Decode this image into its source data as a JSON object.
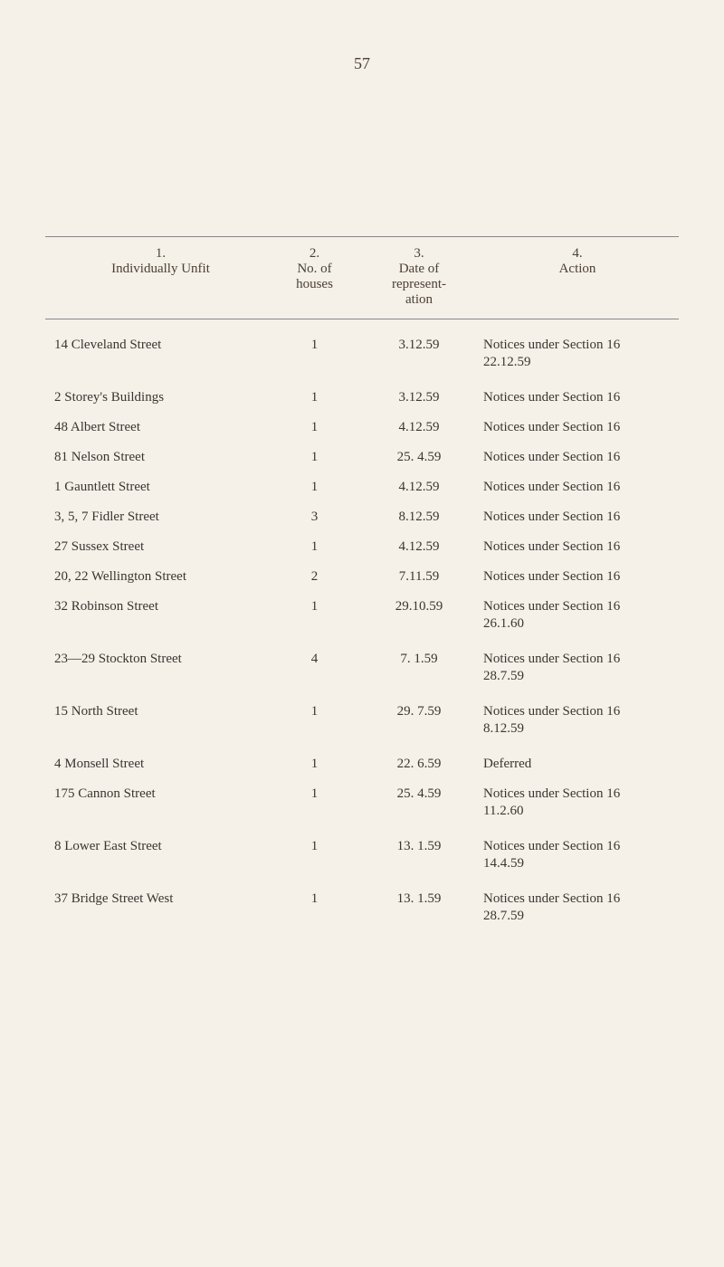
{
  "page_number": "57",
  "headers": {
    "col1_num": "1.",
    "col1_label": "Individually Unfit",
    "col2_num": "2.",
    "col2_label_1": "No. of",
    "col2_label_2": "houses",
    "col3_num": "3.",
    "col3_label_1": "Date of",
    "col3_label_2": "represent-",
    "col3_label_3": "ation",
    "col4_num": "4.",
    "col4_label": "Action"
  },
  "rows": [
    {
      "street": "14 Cleveland Street",
      "houses": "1",
      "date": "3.12.59",
      "action": "Notices under Section 16",
      "sub": "22.12.59"
    },
    {
      "street": "2 Storey's Buildings",
      "houses": "1",
      "date": "3.12.59",
      "action": "Notices under Section 16",
      "sub": ""
    },
    {
      "street": "48 Albert Street",
      "houses": "1",
      "date": "4.12.59",
      "action": "Notices under Section 16",
      "sub": ""
    },
    {
      "street": "81 Nelson Street",
      "houses": "1",
      "date": "25. 4.59",
      "action": "Notices under Section 16",
      "sub": ""
    },
    {
      "street": "1 Gauntlett Street",
      "houses": "1",
      "date": "4.12.59",
      "action": "Notices under Section 16",
      "sub": ""
    },
    {
      "street": "3, 5, 7 Fidler Street",
      "houses": "3",
      "date": "8.12.59",
      "action": "Notices under Section 16",
      "sub": ""
    },
    {
      "street": "27 Sussex Street",
      "houses": "1",
      "date": "4.12.59",
      "action": "Notices under Section 16",
      "sub": ""
    },
    {
      "street": "20, 22 Wellington Street",
      "houses": "2",
      "date": "7.11.59",
      "action": "Notices under Section 16",
      "sub": ""
    },
    {
      "street": "32 Robinson Street",
      "houses": "1",
      "date": "29.10.59",
      "action": "Notices under Section 16",
      "sub": "26.1.60"
    },
    {
      "street": "23—29 Stockton Street",
      "houses": "4",
      "date": "7. 1.59",
      "action": "Notices under Section 16",
      "sub": "28.7.59"
    },
    {
      "street": "15 North Street",
      "houses": "1",
      "date": "29. 7.59",
      "action": "Notices under Section 16",
      "sub": "8.12.59"
    },
    {
      "street": "4 Monsell Street",
      "houses": "1",
      "date": "22. 6.59",
      "action": "Deferred",
      "sub": ""
    },
    {
      "street": "175 Cannon Street",
      "houses": "1",
      "date": "25. 4.59",
      "action": "Notices under Section 16",
      "sub": "11.2.60"
    },
    {
      "street": "8 Lower East Street",
      "houses": "1",
      "date": "13. 1.59",
      "action": "Notices under Section 16",
      "sub": "14.4.59"
    },
    {
      "street": "37 Bridge Street West",
      "houses": "1",
      "date": "13. 1.59",
      "action": "Notices under Section 16",
      "sub": "28.7.59"
    }
  ]
}
